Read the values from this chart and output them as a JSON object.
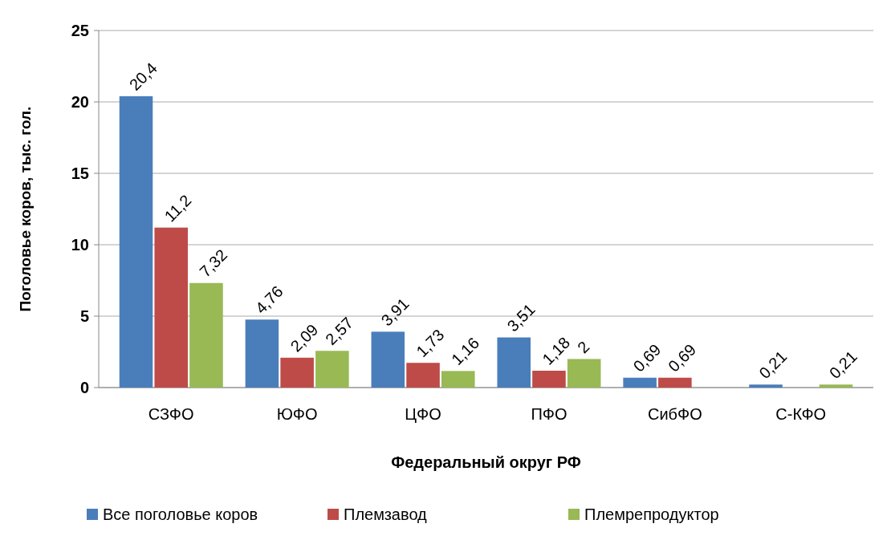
{
  "chart_data": {
    "type": "bar",
    "xlabel": "Федеральный округ РФ",
    "ylabel": "Поголовье коров, тыс. гол.",
    "categories": [
      "СЗФО",
      "ЮФО",
      "ЦФО",
      "ПФО",
      "СибФО",
      "С-КФО"
    ],
    "series": [
      {
        "name": "Все поголовье коров",
        "color": "#4a7ebb",
        "values": [
          20.4,
          4.76,
          3.91,
          3.51,
          0.69,
          0.21
        ],
        "value_labels": [
          "20,4",
          "4,76",
          "3,91",
          "3,51",
          "0,69",
          "0,21"
        ]
      },
      {
        "name": "Племзавод",
        "color": "#be4b48",
        "values": [
          11.2,
          2.09,
          1.73,
          1.18,
          0.69,
          null
        ],
        "value_labels": [
          "11,2",
          "2,09",
          "1,73",
          "1,18",
          "0,69",
          null
        ]
      },
      {
        "name": "Племрепродуктор",
        "color": "#98b954",
        "values": [
          7.32,
          2.57,
          1.16,
          2,
          null,
          0.21
        ],
        "value_labels": [
          "7,32",
          "2,57",
          "1,16",
          "2",
          null,
          "0,21"
        ]
      }
    ],
    "ylim": [
      0,
      25
    ],
    "yticks": [
      0,
      5,
      10,
      15,
      20,
      25
    ],
    "grid": "y",
    "legend": "bottom"
  }
}
